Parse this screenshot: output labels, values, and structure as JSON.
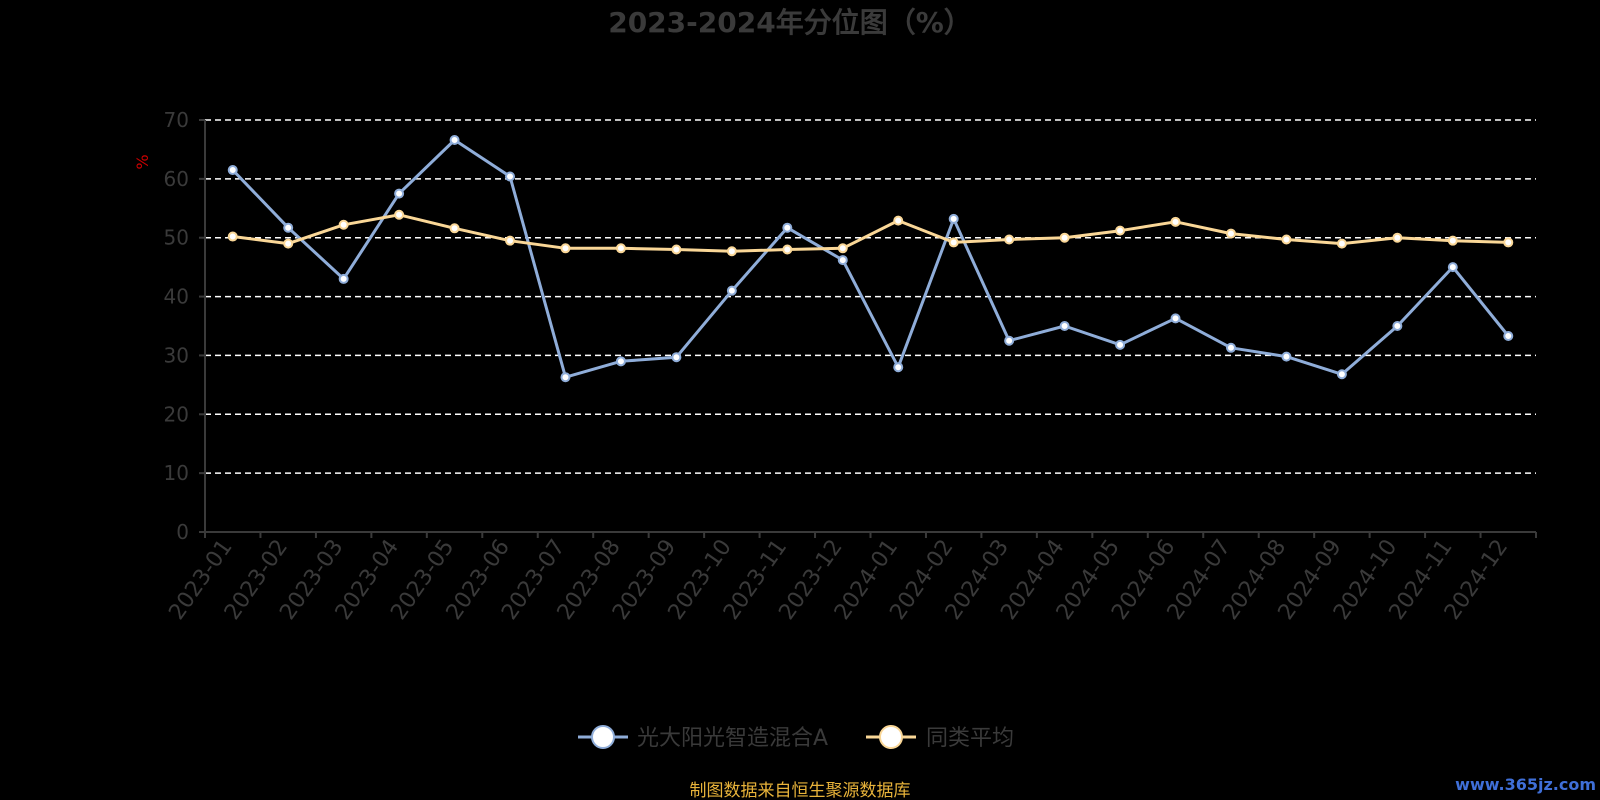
{
  "chart_data": {
    "type": "line",
    "title": "2023-2024年分位图（%）",
    "ylabel": "%",
    "xlabel": "",
    "ylim": [
      0,
      70
    ],
    "yticks": [
      0,
      10,
      20,
      30,
      40,
      50,
      60,
      70
    ],
    "grid": true,
    "legend_position": "bottom",
    "categories": [
      "2023-01",
      "2023-02",
      "2023-03",
      "2023-04",
      "2023-05",
      "2023-06",
      "2023-07",
      "2023-08",
      "2023-09",
      "2023-10",
      "2023-11",
      "2023-12",
      "2024-01",
      "2024-02",
      "2024-03",
      "2024-04",
      "2024-05",
      "2024-06",
      "2024-07",
      "2024-08",
      "2024-09",
      "2024-10",
      "2024-11",
      "2024-12"
    ],
    "series": [
      {
        "name": "光大阳光智造混合A",
        "color": "#8fadd9",
        "values": [
          61.5,
          51.7,
          43,
          57.5,
          66.6,
          60.4,
          26.3,
          29,
          29.7,
          41,
          51.7,
          46.2,
          28,
          53.2,
          32.5,
          35,
          31.8,
          36.3,
          31.3,
          29.8,
          26.8,
          35,
          45,
          33.3
        ]
      },
      {
        "name": "同类平均",
        "color": "#fad797",
        "values": [
          50.2,
          49,
          52.2,
          53.9,
          51.6,
          49.5,
          48.2,
          48.2,
          48,
          47.7,
          48,
          48.2,
          52.9,
          49.2,
          49.7,
          50,
          51.2,
          52.7,
          50.7,
          49.7,
          49,
          50,
          49.5,
          49.2
        ]
      }
    ]
  },
  "footer": {
    "source": "制图数据来自恒生聚源数据库",
    "source_color": "#e8b33a",
    "watermark": "www.365jz.com",
    "watermark_color": "#3f6fd8"
  },
  "colors": {
    "background": "#000000",
    "axis": "#3a3a3a",
    "grid": "#ffffff",
    "unit": "#cc0000"
  }
}
